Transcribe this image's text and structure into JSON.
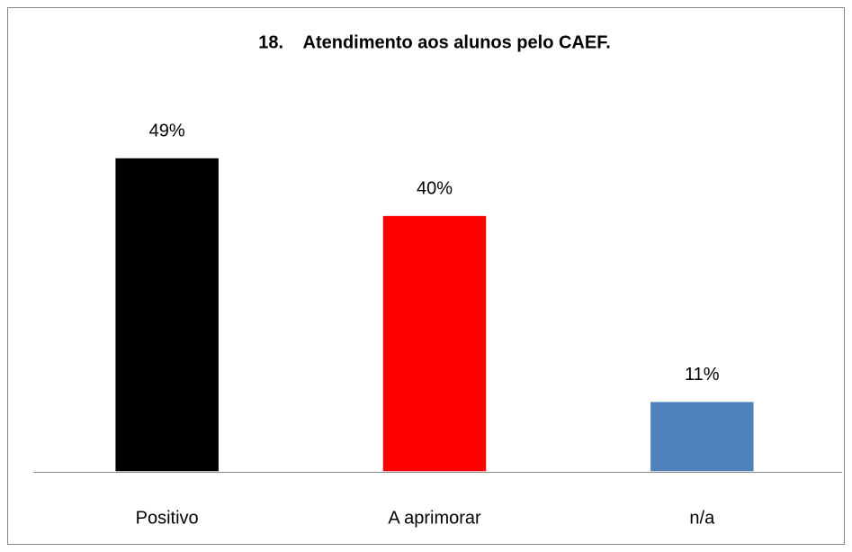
{
  "chart_data": {
    "type": "bar",
    "title": "18.    Atendimento aos alunos pelo CAEF.",
    "categories": [
      "Positivo",
      "A aprimorar",
      "n/a"
    ],
    "values": [
      49,
      40,
      11
    ],
    "value_labels": [
      "49%",
      "40%",
      "11%"
    ],
    "colors": [
      "#000000",
      "#ff0000",
      "#4f81bd"
    ]
  }
}
